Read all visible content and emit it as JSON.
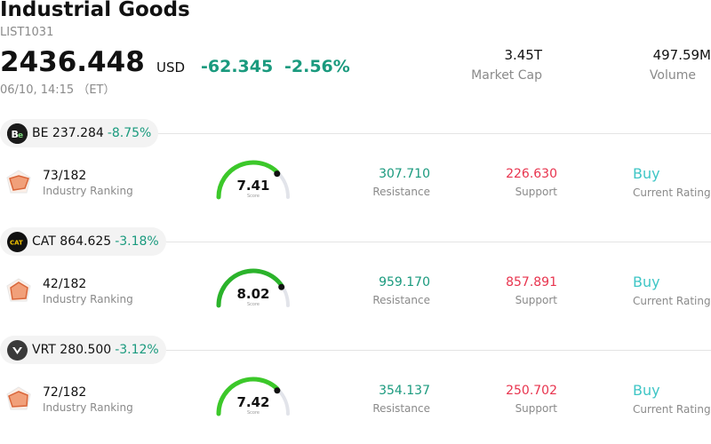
{
  "header": {
    "title": "Industrial Goods",
    "code": "LIST1031",
    "price": "2436.448",
    "currency": "USD",
    "change": "-62.345",
    "change_pct": "-2.56%",
    "time": "06/10, 14:15 （ET）",
    "market_cap_value": "3.45T",
    "market_cap_label": "Market Cap",
    "volume_value": "497.59M",
    "volume_label": "Volume"
  },
  "stocks": [
    {
      "ticker": "BE",
      "logo_text": "Be",
      "price": "237.284",
      "change_pct": "-8.75%",
      "rank": "73/182",
      "rank_label": "Industry Ranking",
      "score": "7.41",
      "score_label": "Score",
      "resistance": "307.710",
      "resistance_label": "Resistance",
      "support": "226.630",
      "support_label": "Support",
      "rating": "Buy",
      "rating_label": "Current Rating"
    },
    {
      "ticker": "CAT",
      "logo_text": "CAT",
      "price": "864.625",
      "change_pct": "-3.18%",
      "rank": "42/182",
      "rank_label": "Industry Ranking",
      "score": "8.02",
      "score_label": "Score",
      "resistance": "959.170",
      "resistance_label": "Resistance",
      "support": "857.891",
      "support_label": "Support",
      "rating": "Buy",
      "rating_label": "Current Rating"
    },
    {
      "ticker": "VRT",
      "logo_text": "",
      "price": "280.500",
      "change_pct": "-3.12%",
      "rank": "72/182",
      "rank_label": "Industry Ranking",
      "score": "7.42",
      "score_label": "Score",
      "resistance": "354.137",
      "resistance_label": "Resistance",
      "support": "250.702",
      "support_label": "Support",
      "rating": "Buy",
      "rating_label": "Current Rating"
    }
  ],
  "colors": {
    "positive": "#1a9a7e",
    "negative": "#e8344e",
    "rating": "#3fc6c6",
    "gauge_green": "#3cc82a",
    "gauge_track": "#e2e4ea"
  }
}
